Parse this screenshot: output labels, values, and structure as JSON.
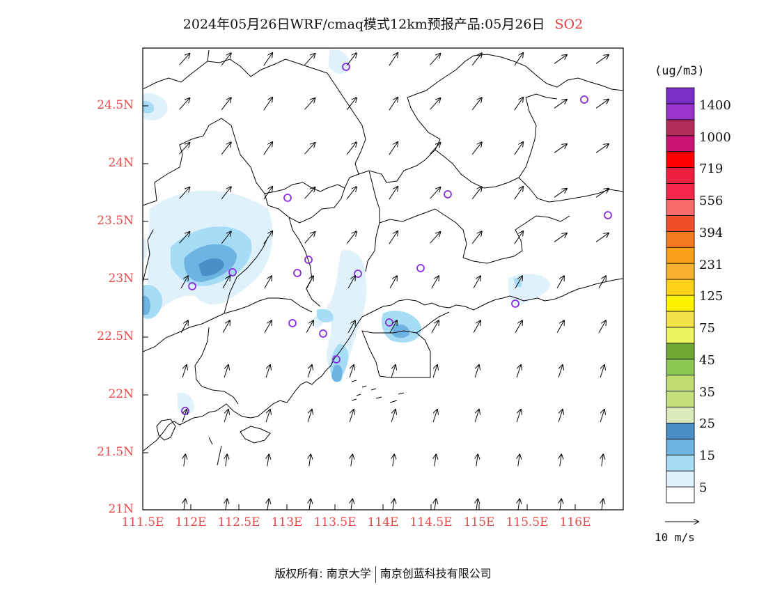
{
  "title": {
    "main": "2024年05月26日WRF/cmaq模式12km预报产品:05月26日",
    "species": "SO2"
  },
  "map": {
    "lon_labels": [
      "111.5E",
      "112E",
      "112.5E",
      "113E",
      "113.5E",
      "114E",
      "114.5E",
      "115E",
      "115.5E",
      "116E"
    ],
    "lat_labels": [
      "24.5N",
      "24N",
      "23.5N",
      "23N",
      "22.5N",
      "22N",
      "21.5N",
      "21N"
    ],
    "station_marker_color": "#8a2be2",
    "boundary_color": "#000000",
    "axis_label_color": "#e84a4a"
  },
  "colorbar": {
    "unit": "(ug/m3)",
    "colors": [
      "#ffffff",
      "#dff1fb",
      "#a6dcf5",
      "#6eb4e3",
      "#4a8fc7",
      "#dbeabb",
      "#c4e07a",
      "#c0de6e",
      "#8dc850",
      "#6fa832",
      "#eef560",
      "#f5e14a",
      "#fff200",
      "#ffd21a",
      "#f7b12e",
      "#f9a01a",
      "#f47b20",
      "#ee4f29",
      "#f96b6b",
      "#f5284c",
      "#ef1f3f",
      "#ff0000",
      "#cc1475",
      "#b22f5a",
      "#9933cc",
      "#7b2fc9"
    ],
    "labels": [
      "5",
      "15",
      "25",
      "35",
      "45",
      "75",
      "125",
      "231",
      "394",
      "556",
      "719",
      "1000",
      "1400"
    ]
  },
  "wind_reference": {
    "label": "10 m/s"
  },
  "footer": {
    "copyright": "版权所有: 南京大学",
    "partner": "南京创蓝科技有限公司"
  }
}
